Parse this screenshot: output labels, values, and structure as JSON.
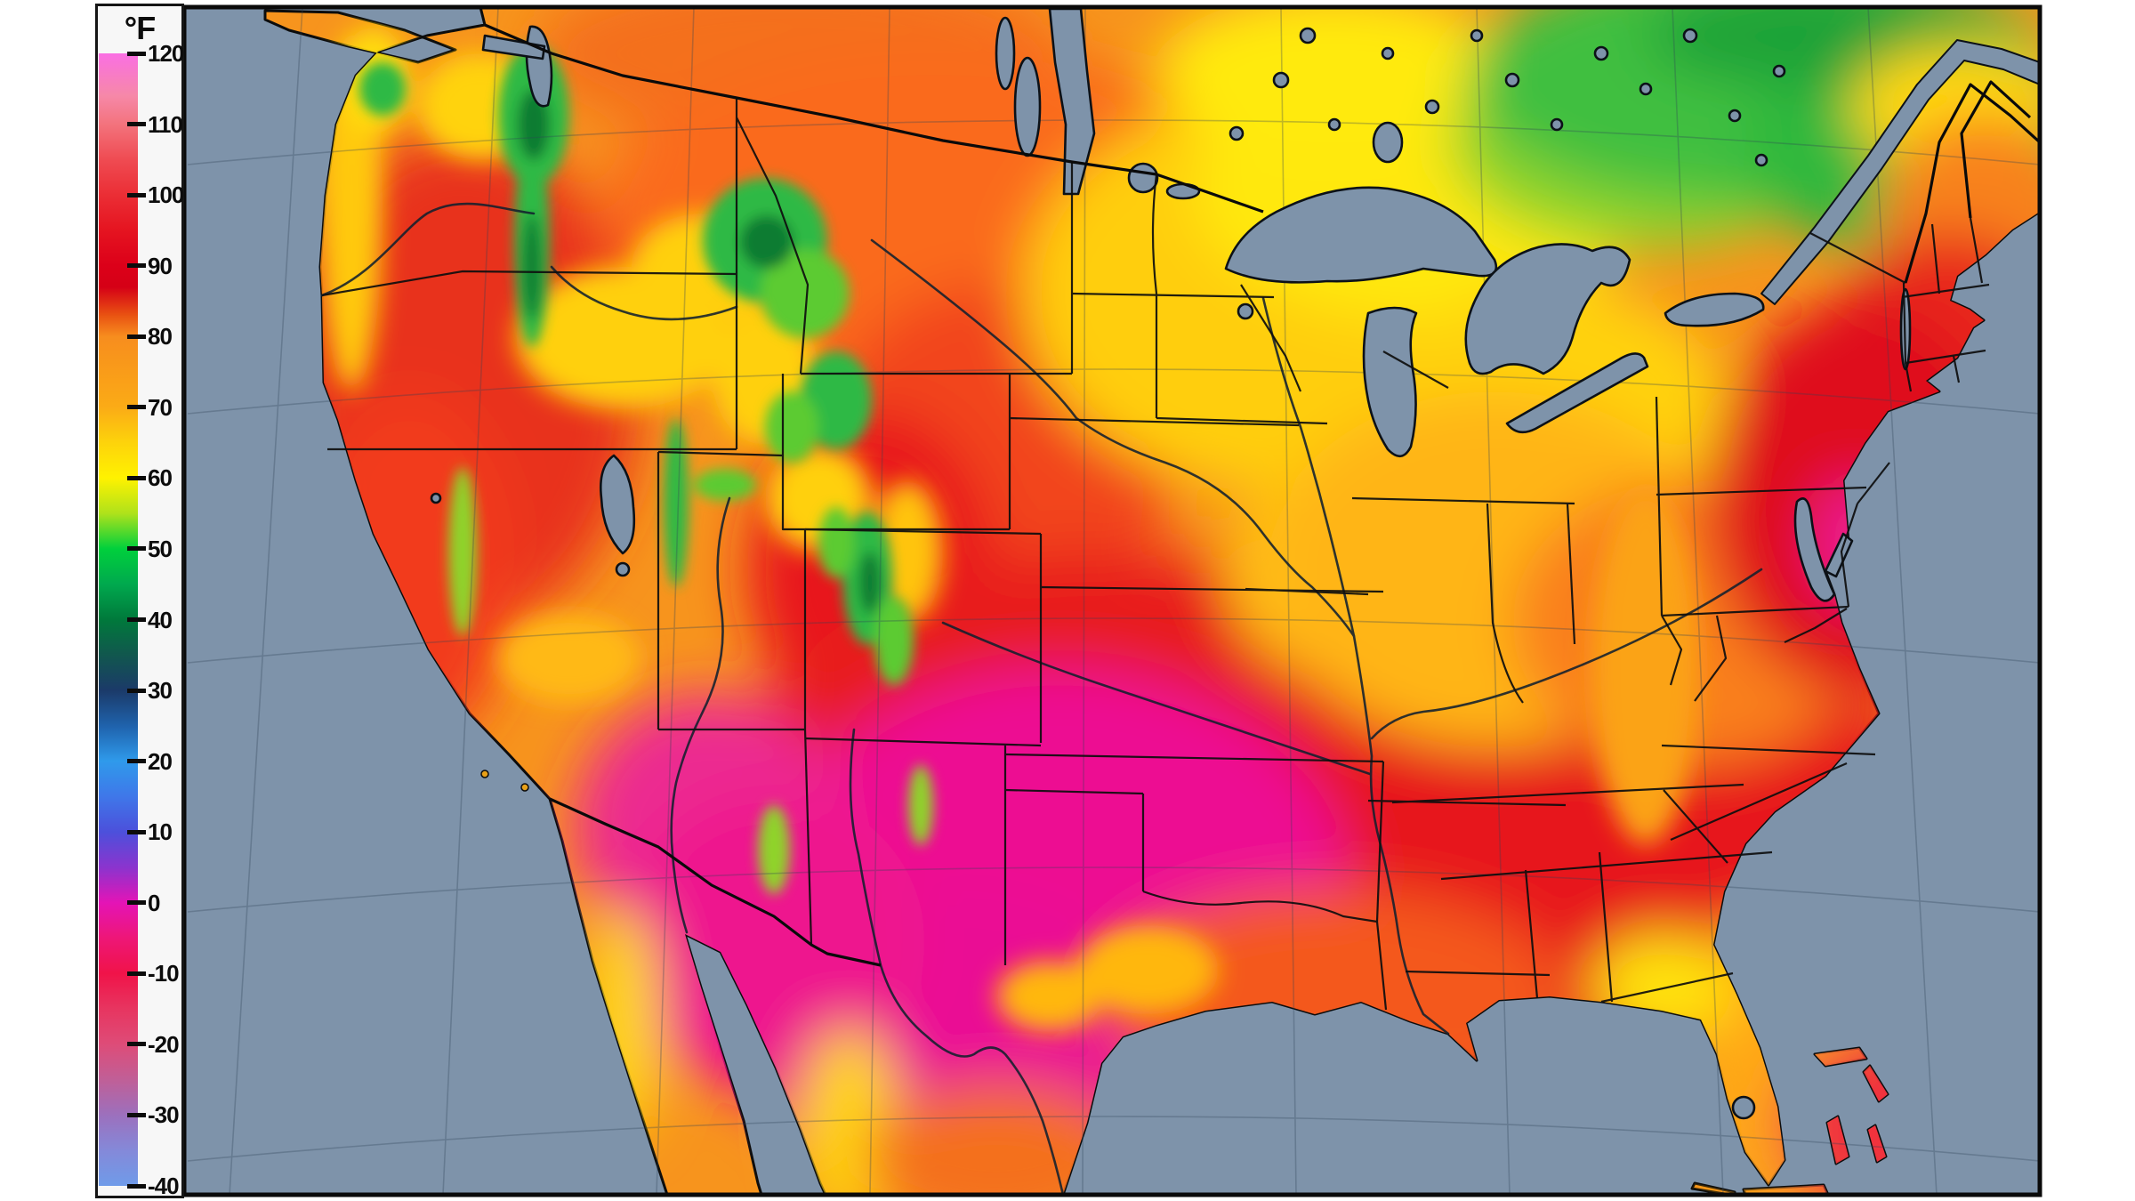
{
  "legend": {
    "unit_label": "°F",
    "range": {
      "max": 120,
      "min": -40,
      "step": 10
    },
    "tick_values": [
      120,
      110,
      100,
      90,
      80,
      70,
      60,
      50,
      40,
      30,
      20,
      10,
      0,
      -10,
      -20,
      -30,
      -40
    ],
    "gradient_stops": [
      {
        "value": 120,
        "color": "#FA6FE3"
      },
      {
        "value": 114,
        "color": "#F688A8"
      },
      {
        "value": 110,
        "color": "#F3737D"
      },
      {
        "value": 105,
        "color": "#EF4B52"
      },
      {
        "value": 100,
        "color": "#EB2E35"
      },
      {
        "value": 95,
        "color": "#E51420"
      },
      {
        "value": 90,
        "color": "#DC0019"
      },
      {
        "value": 87,
        "color": "#D50016"
      },
      {
        "value": 83,
        "color": "#E95312"
      },
      {
        "value": 80,
        "color": "#F78D1E"
      },
      {
        "value": 75,
        "color": "#F99C19"
      },
      {
        "value": 70,
        "color": "#FBAB16"
      },
      {
        "value": 65,
        "color": "#FDD30B"
      },
      {
        "value": 60,
        "color": "#FFF200"
      },
      {
        "value": 55,
        "color": "#AEE21B"
      },
      {
        "value": 50,
        "color": "#00D03C"
      },
      {
        "value": 45,
        "color": "#00A94E"
      },
      {
        "value": 40,
        "color": "#00793B"
      },
      {
        "value": 35,
        "color": "#11574E"
      },
      {
        "value": 30,
        "color": "#1B3A69"
      },
      {
        "value": 25,
        "color": "#1F62AC"
      },
      {
        "value": 20,
        "color": "#2F9AEB"
      },
      {
        "value": 15,
        "color": "#3F77E9"
      },
      {
        "value": 10,
        "color": "#4C50DB"
      },
      {
        "value": 5,
        "color": "#8B34CE"
      },
      {
        "value": 0,
        "color": "#E414B6"
      },
      {
        "value": -5,
        "color": "#EE1677"
      },
      {
        "value": -10,
        "color": "#F01349"
      },
      {
        "value": -15,
        "color": "#E73560"
      },
      {
        "value": -20,
        "color": "#DE4C78"
      },
      {
        "value": -25,
        "color": "#C05F97"
      },
      {
        "value": -30,
        "color": "#9C70BD"
      },
      {
        "value": -35,
        "color": "#8489D9"
      },
      {
        "value": -40,
        "color": "#6F9BE9"
      }
    ]
  },
  "map": {
    "type": "surface-temperature-raster",
    "region": "Contiguous United States with southern Canada, northern Mexico and Bahamas",
    "ocean_color": "#7E93AA",
    "coastline_color": "#0c0c0c",
    "graticule_color": "#2E4257",
    "regional_temperatures_f": {
      "pacific_northwest_interior": "85-95 red-orange with green mountain pockets 50-60",
      "california_coast": "70-85 orange with yellow strip",
      "great_basin_nevada_utah": "90-100 red",
      "desert_southwest_arizona": "100-112 magenta",
      "texas_oklahoma_core": "100-110 magenta",
      "central_plains": "80-90 orange",
      "upper_midwest_great_lakes": "70-82 yellow to orange",
      "midwest_corn_belt": "80-88 orange",
      "lower_mississippi_valley_southeast": "90-100 red",
      "florida": "85-95 orange with yellow patches",
      "northeast_corridor": "90-100 red to magenta",
      "northern_ontario_quebec": "50-65 green",
      "southern_canada_border": "65-80 yellow to orange"
    }
  }
}
